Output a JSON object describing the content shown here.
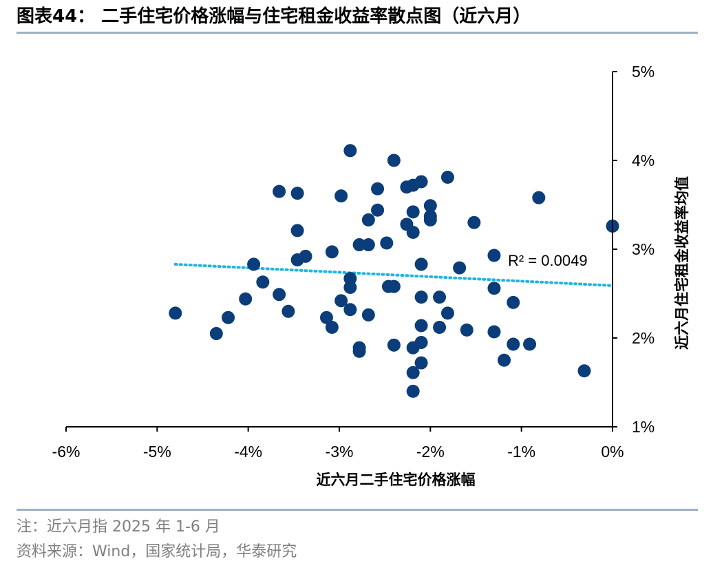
{
  "title": "图表44：  二手住宅价格涨幅与住宅租金收益率散点图（近六月）",
  "footnote": "注：近六月指 2025 年 1-6 月",
  "source": "资料来源：Wind，国家统计局，华泰研究",
  "colors": {
    "points": "#0a3d7a",
    "trendline": "#1ab6e6",
    "axis": "#000000",
    "rule": "#9fb0c4",
    "note_text": "#7f7f7f"
  },
  "chart_data": {
    "type": "scatter",
    "title": "",
    "xlabel": "近六月二手住宅价格涨幅",
    "ylabel": "近六月住宅租金收益率均值",
    "xlim": [
      -6,
      0
    ],
    "ylim": [
      1,
      5
    ],
    "xticks": [
      "-6%",
      "-5%",
      "-4%",
      "-3%",
      "-2%",
      "-1%",
      "0%"
    ],
    "yticks": [
      "1%",
      "2%",
      "3%",
      "4%",
      "5%"
    ],
    "y_axis_position": "right",
    "grid": false,
    "legend": "none",
    "annotation": "R² = 0.0049",
    "trendline": {
      "x": [
        -4.8,
        0
      ],
      "y": [
        2.83,
        2.59
      ]
    },
    "points": [
      {
        "x": -4.8,
        "y": 2.28
      },
      {
        "x": -4.35,
        "y": 2.05
      },
      {
        "x": -4.22,
        "y": 2.23
      },
      {
        "x": -4.03,
        "y": 2.44
      },
      {
        "x": -3.94,
        "y": 2.83
      },
      {
        "x": -3.84,
        "y": 2.63
      },
      {
        "x": -3.66,
        "y": 3.65
      },
      {
        "x": -3.66,
        "y": 2.49
      },
      {
        "x": -3.56,
        "y": 2.3
      },
      {
        "x": -3.46,
        "y": 3.63
      },
      {
        "x": -3.46,
        "y": 3.21
      },
      {
        "x": -3.46,
        "y": 2.88
      },
      {
        "x": -3.37,
        "y": 2.92
      },
      {
        "x": -3.14,
        "y": 2.23
      },
      {
        "x": -3.08,
        "y": 2.97
      },
      {
        "x": -3.08,
        "y": 2.12
      },
      {
        "x": -2.98,
        "y": 3.6
      },
      {
        "x": -2.98,
        "y": 2.42
      },
      {
        "x": -2.88,
        "y": 4.11
      },
      {
        "x": -2.88,
        "y": 2.67
      },
      {
        "x": -2.88,
        "y": 2.57
      },
      {
        "x": -2.88,
        "y": 2.32
      },
      {
        "x": -2.78,
        "y": 3.05
      },
      {
        "x": -2.78,
        "y": 1.89
      },
      {
        "x": -2.78,
        "y": 1.85
      },
      {
        "x": -2.68,
        "y": 3.33
      },
      {
        "x": -2.68,
        "y": 3.05
      },
      {
        "x": -2.68,
        "y": 2.26
      },
      {
        "x": -2.58,
        "y": 3.68
      },
      {
        "x": -2.58,
        "y": 3.44
      },
      {
        "x": -2.48,
        "y": 3.07
      },
      {
        "x": -2.46,
        "y": 2.58
      },
      {
        "x": -2.4,
        "y": 4.0
      },
      {
        "x": -2.4,
        "y": 2.58
      },
      {
        "x": -2.4,
        "y": 1.92
      },
      {
        "x": -2.26,
        "y": 3.7
      },
      {
        "x": -2.26,
        "y": 3.28
      },
      {
        "x": -2.19,
        "y": 3.72
      },
      {
        "x": -2.19,
        "y": 3.42
      },
      {
        "x": -2.19,
        "y": 3.19
      },
      {
        "x": -2.19,
        "y": 1.89
      },
      {
        "x": -2.19,
        "y": 1.61
      },
      {
        "x": -2.19,
        "y": 1.4
      },
      {
        "x": -2.1,
        "y": 3.76
      },
      {
        "x": -2.1,
        "y": 2.83
      },
      {
        "x": -2.1,
        "y": 2.46
      },
      {
        "x": -2.1,
        "y": 2.14
      },
      {
        "x": -2.1,
        "y": 1.95
      },
      {
        "x": -2.1,
        "y": 1.72
      },
      {
        "x": -2.0,
        "y": 3.49
      },
      {
        "x": -2.0,
        "y": 3.37
      },
      {
        "x": -2.0,
        "y": 3.33
      },
      {
        "x": -1.9,
        "y": 2.46
      },
      {
        "x": -1.9,
        "y": 2.12
      },
      {
        "x": -1.81,
        "y": 3.81
      },
      {
        "x": -1.81,
        "y": 2.28
      },
      {
        "x": -1.68,
        "y": 2.79
      },
      {
        "x": -1.6,
        "y": 2.09
      },
      {
        "x": -1.52,
        "y": 3.3
      },
      {
        "x": -1.3,
        "y": 2.93
      },
      {
        "x": -1.3,
        "y": 2.56
      },
      {
        "x": -1.3,
        "y": 2.07
      },
      {
        "x": -1.19,
        "y": 1.75
      },
      {
        "x": -1.09,
        "y": 2.4
      },
      {
        "x": -1.09,
        "y": 1.93
      },
      {
        "x": -0.91,
        "y": 1.93
      },
      {
        "x": -0.81,
        "y": 3.58
      },
      {
        "x": -0.31,
        "y": 1.63
      },
      {
        "x": 0.0,
        "y": 3.26
      }
    ]
  }
}
